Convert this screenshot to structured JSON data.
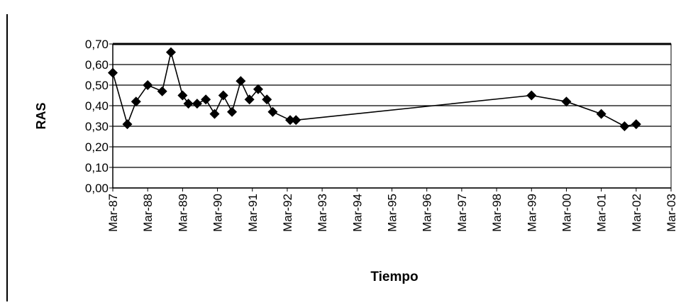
{
  "chart_data": {
    "type": "line",
    "title": "",
    "xlabel": "Tiempo",
    "ylabel": "RAS",
    "ylim": [
      0,
      0.7
    ],
    "yticks": [
      "0,00",
      "0,10",
      "0,20",
      "0,30",
      "0,40",
      "0,50",
      "0,60",
      "0,70"
    ],
    "yticks_values": [
      0,
      0.1,
      0.2,
      0.3,
      0.4,
      0.5,
      0.6,
      0.7
    ],
    "xticks": [
      "Mar-87",
      "Mar-88",
      "Mar-89",
      "Mar-90",
      "Mar-91",
      "Mar-92",
      "Mar-93",
      "Mar-94",
      "Mar-95",
      "Mar-96",
      "Mar-97",
      "Mar-98",
      "Mar-99",
      "Mar-00",
      "Mar-01",
      "Mar-02",
      "Mar-03"
    ],
    "grid": true,
    "legend": "none",
    "series": [
      {
        "marker": "diamond",
        "color": "#000000",
        "points": [
          [
            "1987-03",
            0.56
          ],
          [
            "1987-08",
            0.31
          ],
          [
            "1987-11",
            0.42
          ],
          [
            "1988-03",
            0.5
          ],
          [
            "1988-08",
            0.47
          ],
          [
            "1988-11",
            0.66
          ],
          [
            "1989-03",
            0.45
          ],
          [
            "1989-05",
            0.41
          ],
          [
            "1989-08",
            0.41
          ],
          [
            "1989-11",
            0.43
          ],
          [
            "1990-02",
            0.36
          ],
          [
            "1990-05",
            0.45
          ],
          [
            "1990-08",
            0.37
          ],
          [
            "1990-11",
            0.52
          ],
          [
            "1991-02",
            0.43
          ],
          [
            "1991-05",
            0.48
          ],
          [
            "1991-08",
            0.43
          ],
          [
            "1991-10",
            0.37
          ],
          [
            "1992-04",
            0.33
          ],
          [
            "1992-06",
            0.33
          ],
          [
            "1999-03",
            0.45
          ],
          [
            "2000-03",
            0.42
          ],
          [
            "2001-03",
            0.36
          ],
          [
            "2001-11",
            0.3
          ],
          [
            "2002-03",
            0.31
          ]
        ]
      }
    ]
  }
}
